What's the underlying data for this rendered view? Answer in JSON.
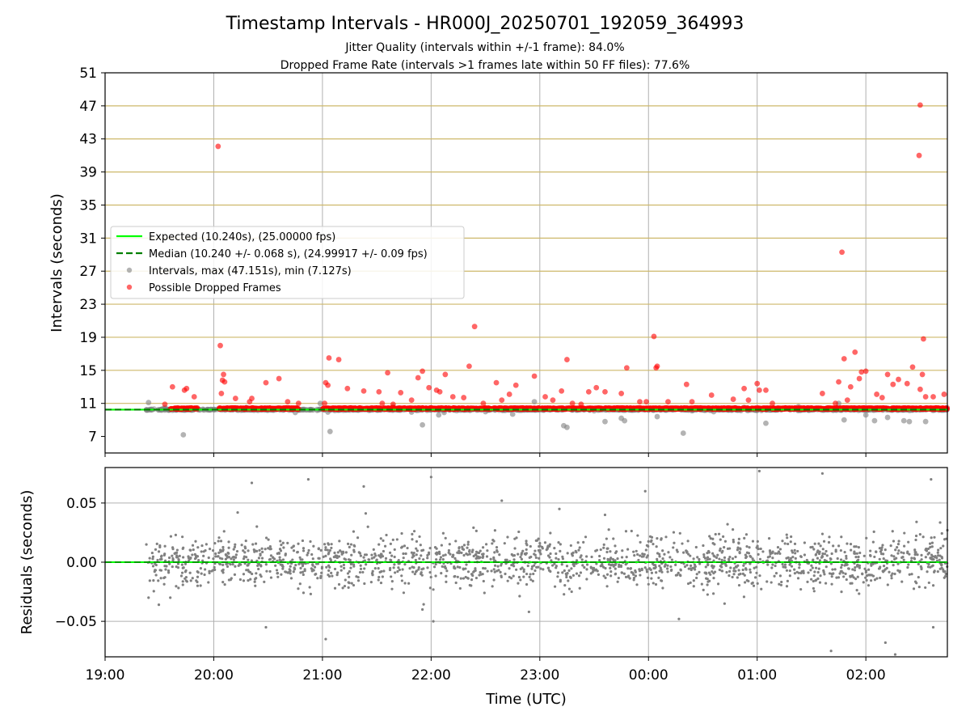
{
  "chart_data": [
    {
      "type": "scatter",
      "title": "Timestamp Intervals - HR000J_20250701_192059_364993",
      "subtitle_lines": [
        "Jitter Quality (intervals within +/-1 frame): 84.0%",
        "Dropped Frame Rate (intervals >1 frames late within 50 FF files): 77.6%"
      ],
      "xlabel": "",
      "ylabel": "Intervals (seconds)",
      "xlim_hours": [
        19.0,
        26.75
      ],
      "ylim": [
        5.0,
        51.0
      ],
      "yticks": [
        7,
        11,
        15,
        19,
        23,
        27,
        31,
        35,
        39,
        43,
        47,
        51
      ],
      "ytick_labels": [
        "7",
        "11",
        "15",
        "19",
        "23",
        "27",
        "31",
        "35",
        "39",
        "43",
        "47",
        "51"
      ],
      "reference_lines": [
        {
          "name": "Expected (10.240s), (25.00000 fps)",
          "y": 10.24,
          "color": "#00ff00",
          "style": "solid"
        },
        {
          "name": "Median (10.240 +/- 0.068 s), (24.99917 +/- 0.09 fps)",
          "y": 10.24,
          "color": "#007f00",
          "style": "dashed"
        }
      ],
      "horizontal_band_lines": [
        11,
        15,
        19,
        23,
        27,
        31,
        35,
        39,
        43,
        47
      ],
      "legend": {
        "placement": "center-left",
        "entries": [
          "Expected (10.240s), (25.00000 fps)",
          "Median (10.240 +/- 0.068 s), (24.99917 +/- 0.09 fps)",
          "Intervals, max (47.151s), min (7.127s)",
          "Possible Dropped Frames"
        ]
      },
      "series": [
        {
          "name": "Intervals, max (47.151s), min (7.127s)",
          "color": "#808080",
          "points": [
            [
              19.38,
              10.24
            ],
            [
              19.4,
              11.1
            ],
            [
              19.55,
              10.5
            ],
            [
              19.72,
              7.2
            ],
            [
              19.9,
              10.3
            ],
            [
              20.3,
              10.5
            ],
            [
              20.65,
              10.4
            ],
            [
              20.75,
              9.9
            ],
            [
              20.98,
              11.0
            ],
            [
              21.05,
              9.95
            ],
            [
              21.07,
              7.6
            ],
            [
              21.5,
              10.4
            ],
            [
              21.65,
              10.6
            ],
            [
              21.82,
              9.95
            ],
            [
              21.92,
              8.4
            ],
            [
              22.07,
              9.6
            ],
            [
              22.12,
              9.9
            ],
            [
              22.5,
              10.0
            ],
            [
              22.75,
              9.7
            ],
            [
              22.95,
              11.2
            ],
            [
              23.22,
              8.3
            ],
            [
              23.25,
              8.1
            ],
            [
              23.5,
              10.1
            ],
            [
              23.6,
              8.8
            ],
            [
              23.75,
              9.2
            ],
            [
              23.78,
              8.9
            ],
            [
              24.08,
              9.4
            ],
            [
              24.32,
              7.4
            ],
            [
              24.4,
              10.1
            ],
            [
              24.6,
              10.0
            ],
            [
              24.88,
              10.5
            ],
            [
              25.08,
              8.6
            ],
            [
              25.38,
              10.6
            ],
            [
              25.45,
              10.3
            ],
            [
              25.75,
              11.0
            ],
            [
              25.8,
              9.0
            ],
            [
              26.0,
              9.6
            ],
            [
              26.08,
              8.9
            ],
            [
              26.2,
              9.3
            ],
            [
              26.35,
              8.9
            ],
            [
              26.4,
              8.8
            ],
            [
              26.55,
              8.8
            ]
          ]
        },
        {
          "name": "Possible Dropped Frames",
          "color": "#ff0000",
          "points": [
            [
              19.55,
              10.9
            ],
            [
              19.62,
              13.0
            ],
            [
              19.68,
              10.3
            ],
            [
              19.73,
              12.6
            ],
            [
              19.75,
              12.8
            ],
            [
              19.82,
              11.8
            ],
            [
              20.04,
              42.1
            ],
            [
              20.06,
              18.0
            ],
            [
              20.07,
              12.2
            ],
            [
              20.08,
              13.8
            ],
            [
              20.09,
              14.5
            ],
            [
              20.1,
              13.6
            ],
            [
              20.2,
              11.6
            ],
            [
              20.33,
              11.2
            ],
            [
              20.35,
              11.6
            ],
            [
              20.48,
              13.5
            ],
            [
              20.6,
              14.0
            ],
            [
              20.68,
              11.2
            ],
            [
              20.78,
              11.0
            ],
            [
              21.02,
              11.0
            ],
            [
              21.03,
              13.5
            ],
            [
              21.05,
              13.2
            ],
            [
              21.06,
              16.5
            ],
            [
              21.15,
              16.3
            ],
            [
              21.23,
              12.8
            ],
            [
              21.38,
              12.5
            ],
            [
              21.52,
              12.4
            ],
            [
              21.55,
              11.0
            ],
            [
              21.6,
              14.7
            ],
            [
              21.65,
              10.9
            ],
            [
              21.72,
              12.3
            ],
            [
              21.82,
              11.4
            ],
            [
              21.88,
              14.1
            ],
            [
              21.92,
              14.9
            ],
            [
              21.98,
              12.9
            ],
            [
              22.05,
              12.6
            ],
            [
              22.08,
              12.4
            ],
            [
              22.13,
              14.5
            ],
            [
              22.2,
              11.8
            ],
            [
              22.3,
              11.7
            ],
            [
              22.35,
              15.5
            ],
            [
              22.4,
              20.3
            ],
            [
              22.48,
              11.0
            ],
            [
              22.6,
              13.5
            ],
            [
              22.65,
              11.4
            ],
            [
              22.72,
              12.1
            ],
            [
              22.78,
              13.2
            ],
            [
              22.95,
              14.3
            ],
            [
              23.05,
              11.8
            ],
            [
              23.12,
              11.4
            ],
            [
              23.2,
              12.5
            ],
            [
              23.25,
              16.3
            ],
            [
              23.3,
              11.0
            ],
            [
              23.38,
              10.9
            ],
            [
              23.45,
              12.4
            ],
            [
              23.52,
              12.9
            ],
            [
              23.6,
              12.4
            ],
            [
              23.75,
              12.2
            ],
            [
              23.8,
              15.3
            ],
            [
              23.92,
              11.2
            ],
            [
              23.98,
              11.2
            ],
            [
              24.05,
              19.1
            ],
            [
              24.07,
              15.3
            ],
            [
              24.08,
              15.5
            ],
            [
              24.18,
              11.2
            ],
            [
              24.35,
              13.3
            ],
            [
              24.4,
              11.2
            ],
            [
              24.58,
              12.0
            ],
            [
              24.78,
              11.5
            ],
            [
              24.88,
              12.8
            ],
            [
              24.92,
              11.4
            ],
            [
              25.0,
              13.4
            ],
            [
              25.02,
              12.6
            ],
            [
              25.08,
              12.6
            ],
            [
              25.14,
              11.0
            ],
            [
              25.6,
              12.2
            ],
            [
              25.72,
              11.0
            ],
            [
              25.75,
              13.6
            ],
            [
              25.78,
              29.3
            ],
            [
              25.8,
              16.4
            ],
            [
              25.83,
              11.4
            ],
            [
              25.86,
              13.0
            ],
            [
              25.9,
              17.2
            ],
            [
              25.94,
              14.0
            ],
            [
              25.96,
              14.8
            ],
            [
              26.0,
              14.9
            ],
            [
              26.1,
              12.1
            ],
            [
              26.15,
              11.7
            ],
            [
              26.2,
              14.5
            ],
            [
              26.25,
              13.3
            ],
            [
              26.3,
              13.9
            ],
            [
              26.38,
              13.4
            ],
            [
              26.43,
              15.4
            ],
            [
              26.5,
              47.1
            ],
            [
              26.49,
              41.0
            ],
            [
              26.53,
              18.8
            ],
            [
              26.55,
              11.8
            ],
            [
              26.62,
              11.8
            ],
            [
              26.72,
              12.1
            ],
            [
              26.5,
              12.7
            ],
            [
              26.52,
              14.5
            ]
          ]
        }
      ]
    },
    {
      "type": "scatter",
      "xlabel": "Time (UTC)",
      "ylabel": "Residuals (seconds)",
      "xlim_hours": [
        19.0,
        26.75
      ],
      "ylim": [
        -0.08,
        0.08
      ],
      "yticks": [
        -0.05,
        0.0,
        0.05
      ],
      "ytick_labels": [
        "−0.05",
        "0.00",
        "0.05"
      ],
      "xticks_hours": [
        19,
        20,
        21,
        22,
        23,
        24,
        25,
        26
      ],
      "xtick_labels": [
        "19:00",
        "20:00",
        "21:00",
        "22:00",
        "23:00",
        "00:00",
        "01:00",
        "02:00"
      ],
      "reference_line": {
        "y": 0.0,
        "color": "#00ff00"
      },
      "series": [
        {
          "name": "",
          "color": "#808080",
          "typical_spread": 0.02,
          "points": [
            [
              19.38,
              0.015
            ],
            [
              19.4,
              -0.03
            ],
            [
              19.6,
              -0.03
            ],
            [
              19.65,
              0.023
            ],
            [
              20.22,
              0.042
            ],
            [
              20.35,
              0.067
            ],
            [
              20.48,
              -0.055
            ],
            [
              20.87,
              0.07
            ],
            [
              21.03,
              -0.065
            ],
            [
              21.38,
              0.064
            ],
            [
              21.92,
              -0.04
            ],
            [
              22.0,
              0.072
            ],
            [
              22.02,
              -0.05
            ],
            [
              22.65,
              0.052
            ],
            [
              22.9,
              -0.042
            ],
            [
              23.18,
              0.045
            ],
            [
              23.6,
              0.04
            ],
            [
              23.97,
              0.06
            ],
            [
              24.28,
              -0.048
            ],
            [
              24.7,
              -0.035
            ],
            [
              25.02,
              0.077
            ],
            [
              25.6,
              0.075
            ],
            [
              25.68,
              -0.075
            ],
            [
              26.18,
              -0.068
            ],
            [
              26.27,
              -0.078
            ],
            [
              26.6,
              0.07
            ],
            [
              26.62,
              -0.055
            ],
            [
              26.75,
              0.027
            ]
          ]
        }
      ]
    }
  ]
}
